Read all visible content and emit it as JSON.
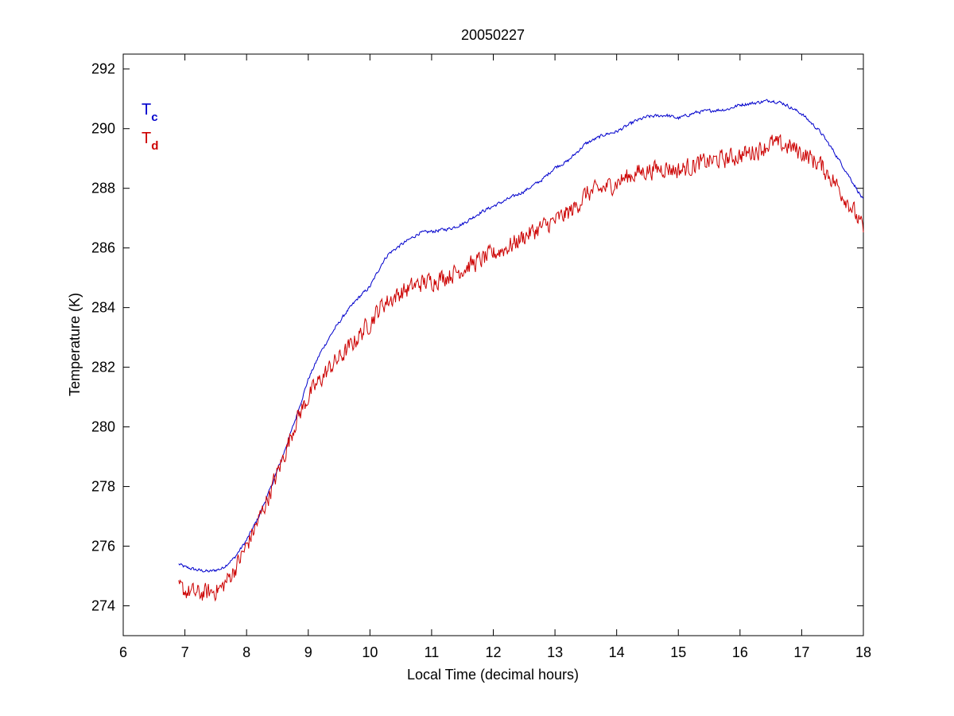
{
  "chart_data": {
    "type": "line",
    "title": "20050227",
    "xlabel": "Local Time (decimal hours)",
    "ylabel": "Temperature (K)",
    "xlim": [
      6,
      18
    ],
    "ylim": [
      273,
      292.5
    ],
    "xticks": [
      6,
      7,
      8,
      9,
      10,
      11,
      12,
      13,
      14,
      15,
      16,
      17,
      18
    ],
    "yticks": [
      274,
      276,
      278,
      280,
      282,
      284,
      286,
      288,
      290,
      292
    ],
    "grid": false,
    "legend_position": "top-left, inside axes",
    "series": [
      {
        "name": "T",
        "subscript": "c",
        "color": "#0000cc",
        "noise": 0.05,
        "x": [
          6.9,
          7.0,
          7.2,
          7.4,
          7.6,
          7.8,
          8.0,
          8.2,
          8.4,
          8.6,
          8.8,
          9.0,
          9.2,
          9.4,
          9.6,
          9.8,
          10.0,
          10.2,
          10.3,
          10.5,
          10.8,
          11.0,
          11.3,
          11.5,
          11.8,
          12.0,
          12.3,
          12.5,
          12.8,
          13.0,
          13.2,
          13.5,
          13.8,
          14.0,
          14.3,
          14.5,
          14.8,
          15.0,
          15.3,
          15.5,
          15.8,
          16.0,
          16.2,
          16.5,
          16.7,
          17.0,
          17.3,
          17.5,
          17.8,
          18.0
        ],
        "y": [
          275.4,
          275.3,
          275.2,
          275.15,
          275.25,
          275.6,
          276.2,
          277.0,
          278.0,
          279.1,
          280.3,
          281.6,
          282.5,
          283.2,
          283.8,
          284.3,
          284.7,
          285.5,
          285.8,
          286.1,
          286.5,
          286.55,
          286.65,
          286.8,
          287.2,
          287.4,
          287.7,
          287.9,
          288.3,
          288.7,
          288.9,
          289.5,
          289.8,
          289.9,
          290.25,
          290.4,
          290.45,
          290.35,
          290.55,
          290.6,
          290.65,
          290.8,
          290.85,
          290.95,
          290.85,
          290.5,
          289.9,
          289.3,
          288.3,
          287.6
        ]
      },
      {
        "name": "T",
        "subscript": "d",
        "color": "#cc0000",
        "noise": 0.28,
        "x": [
          6.9,
          7.0,
          7.2,
          7.4,
          7.6,
          7.8,
          8.0,
          8.2,
          8.4,
          8.6,
          8.8,
          9.0,
          9.2,
          9.4,
          9.6,
          9.8,
          10.0,
          10.2,
          10.5,
          10.8,
          11.0,
          11.3,
          11.5,
          11.8,
          12.0,
          12.3,
          12.5,
          12.8,
          13.0,
          13.3,
          13.5,
          13.8,
          14.0,
          14.3,
          14.5,
          14.8,
          15.0,
          15.3,
          15.5,
          15.8,
          16.0,
          16.3,
          16.5,
          16.8,
          17.0,
          17.3,
          17.5,
          17.8,
          18.0
        ],
        "y": [
          274.6,
          274.5,
          274.4,
          274.45,
          274.6,
          275.2,
          276.0,
          276.9,
          277.9,
          279.0,
          280.2,
          281.0,
          281.6,
          282.1,
          282.5,
          283.0,
          283.5,
          284.1,
          284.5,
          284.8,
          284.9,
          285.1,
          285.3,
          285.6,
          285.8,
          286.1,
          286.4,
          286.7,
          286.9,
          287.3,
          287.8,
          288.0,
          288.2,
          288.5,
          288.6,
          288.7,
          288.6,
          288.8,
          288.9,
          289.0,
          289.1,
          289.3,
          289.5,
          289.4,
          289.2,
          288.8,
          288.3,
          287.4,
          286.6
        ]
      }
    ]
  }
}
